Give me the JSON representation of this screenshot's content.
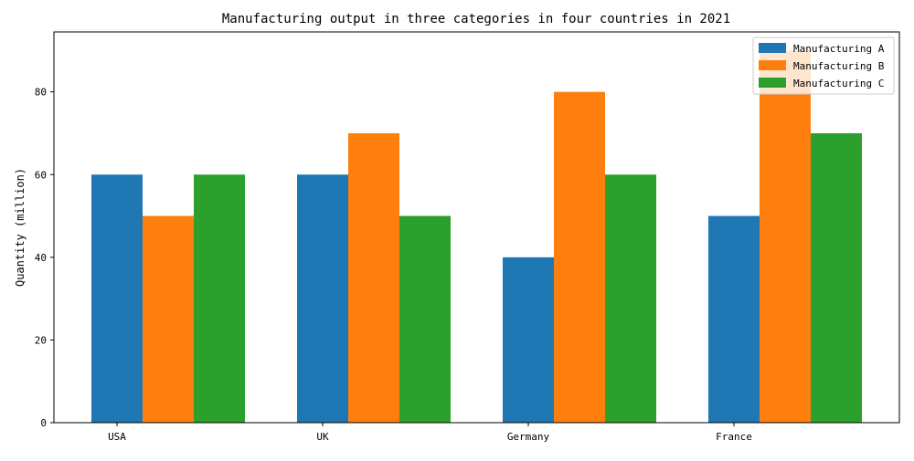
{
  "chart_data": {
    "type": "bar",
    "title": "Manufacturing output in three categories in four countries in 2021",
    "xlabel": "",
    "ylabel": "Quantity (million)",
    "categories": [
      "USA",
      "UK",
      "Germany",
      "France"
    ],
    "series": [
      {
        "name": "Manufacturing A",
        "values": [
          60,
          60,
          40,
          50
        ],
        "color": "#1f77b4"
      },
      {
        "name": "Manufacturing B",
        "values": [
          50,
          70,
          80,
          90
        ],
        "color": "#ff7f0e"
      },
      {
        "name": "Manufacturing C",
        "values": [
          60,
          50,
          60,
          70
        ],
        "color": "#2ca02c"
      }
    ],
    "yticks": [
      0,
      20,
      40,
      60,
      80
    ],
    "ylim": [
      0,
      94.5
    ],
    "grid": false,
    "legend_position": "top-right"
  }
}
